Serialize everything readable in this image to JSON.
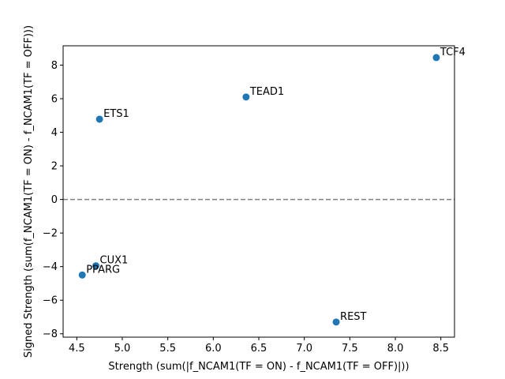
{
  "chart_data": {
    "type": "scatter",
    "title": "",
    "xlabel": "Strength (sum(|f_NCAM1(TF = ON) - f_NCAM1(TF = OFF)|))",
    "ylabel": "Signed Strength (sum(f_NCAM1(TF = ON) - f_NCAM1(TF = OFF)))",
    "xlim": [
      4.35,
      8.65
    ],
    "ylim": [
      -8.2,
      9.15
    ],
    "x_ticks": [
      4.5,
      5.0,
      5.5,
      6.0,
      6.5,
      7.0,
      7.5,
      8.0,
      8.5
    ],
    "x_tick_labels": [
      "4.5",
      "5.0",
      "5.5",
      "6.0",
      "6.5",
      "7.0",
      "7.5",
      "8.0",
      "8.5"
    ],
    "y_ticks": [
      -8,
      -6,
      -4,
      -2,
      0,
      2,
      4,
      6,
      8
    ],
    "y_tick_labels": [
      "−8",
      "−6",
      "−4",
      "−2",
      "0",
      "2",
      "4",
      "6",
      "8"
    ],
    "grid": false,
    "reference_line": {
      "y": 0,
      "style": "dashed",
      "color": "#808080"
    },
    "point_color": "#1f77b4",
    "points": [
      {
        "label": "TCF4",
        "x": 8.45,
        "y": 8.45
      },
      {
        "label": "TEAD1",
        "x": 6.36,
        "y": 6.1
      },
      {
        "label": "ETS1",
        "x": 4.75,
        "y": 4.78
      },
      {
        "label": "CUX1",
        "x": 4.71,
        "y": -3.95
      },
      {
        "label": "PPARG",
        "x": 4.56,
        "y": -4.5
      },
      {
        "label": "REST",
        "x": 7.35,
        "y": -7.3
      }
    ]
  }
}
